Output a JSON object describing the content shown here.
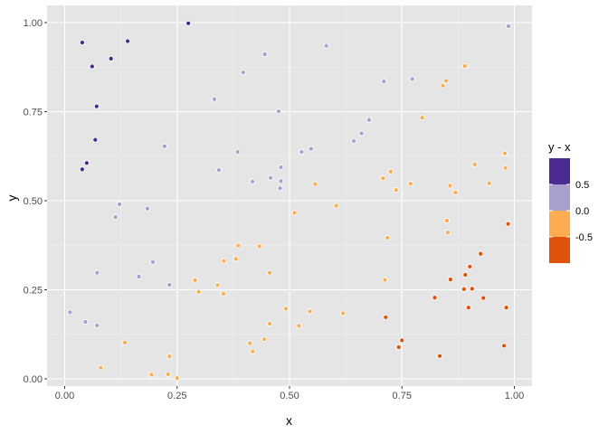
{
  "chart_data": {
    "type": "scatter",
    "xlabel": "x",
    "ylabel": "y",
    "xlim": [
      0.0,
      1.0
    ],
    "ylim": [
      0.0,
      1.0
    ],
    "x_ticks": [
      "0.00",
      "0.25",
      "0.50",
      "0.75",
      "1.00"
    ],
    "y_ticks": [
      "0.00",
      "0.25",
      "0.50",
      "0.75",
      "1.00"
    ],
    "grid": true,
    "background": "#e5e5e5",
    "legend": {
      "title": "y - x",
      "position": "right",
      "bins": [
        {
          "label": "0.5",
          "color": "#4b2a91"
        },
        {
          "label": "",
          "color": "#a99fcd"
        },
        {
          "label": "0.0",
          "color": "#fdac4f"
        },
        {
          "label": "-0.5",
          "color": "#e0520a"
        }
      ],
      "tick_labels": [
        "0.5",
        "0.0",
        "-0.5"
      ]
    },
    "color_rule": "y - x: >= 0.5 dark purple, 0 to 0.5 light purple, -0.5 to 0 light orange, < -0.5 dark orange",
    "points": [
      {
        "x": 0.039,
        "y": 0.944
      },
      {
        "x": 0.061,
        "y": 0.877
      },
      {
        "x": 0.103,
        "y": 0.899
      },
      {
        "x": 0.14,
        "y": 0.948
      },
      {
        "x": 0.071,
        "y": 0.765
      },
      {
        "x": 0.068,
        "y": 0.671
      },
      {
        "x": 0.049,
        "y": 0.606
      },
      {
        "x": 0.039,
        "y": 0.588
      },
      {
        "x": 0.275,
        "y": 0.998
      },
      {
        "x": 0.012,
        "y": 0.187
      },
      {
        "x": 0.046,
        "y": 0.16
      },
      {
        "x": 0.072,
        "y": 0.15
      },
      {
        "x": 0.072,
        "y": 0.298
      },
      {
        "x": 0.113,
        "y": 0.454
      },
      {
        "x": 0.122,
        "y": 0.49
      },
      {
        "x": 0.165,
        "y": 0.287
      },
      {
        "x": 0.184,
        "y": 0.478
      },
      {
        "x": 0.196,
        "y": 0.328
      },
      {
        "x": 0.222,
        "y": 0.653
      },
      {
        "x": 0.233,
        "y": 0.264
      },
      {
        "x": 0.333,
        "y": 0.785
      },
      {
        "x": 0.343,
        "y": 0.586
      },
      {
        "x": 0.385,
        "y": 0.637
      },
      {
        "x": 0.397,
        "y": 0.86
      },
      {
        "x": 0.418,
        "y": 0.554
      },
      {
        "x": 0.445,
        "y": 0.911
      },
      {
        "x": 0.458,
        "y": 0.564
      },
      {
        "x": 0.476,
        "y": 0.751
      },
      {
        "x": 0.481,
        "y": 0.594
      },
      {
        "x": 0.481,
        "y": 0.555
      },
      {
        "x": 0.479,
        "y": 0.535
      },
      {
        "x": 0.527,
        "y": 0.637
      },
      {
        "x": 0.548,
        "y": 0.646
      },
      {
        "x": 0.582,
        "y": 0.935
      },
      {
        "x": 0.643,
        "y": 0.668
      },
      {
        "x": 0.66,
        "y": 0.689
      },
      {
        "x": 0.677,
        "y": 0.727
      },
      {
        "x": 0.71,
        "y": 0.835
      },
      {
        "x": 0.773,
        "y": 0.842
      },
      {
        "x": 0.987,
        "y": 0.99
      },
      {
        "x": 0.08,
        "y": 0.031
      },
      {
        "x": 0.134,
        "y": 0.102
      },
      {
        "x": 0.193,
        "y": 0.012
      },
      {
        "x": 0.23,
        "y": 0.013
      },
      {
        "x": 0.233,
        "y": 0.063
      },
      {
        "x": 0.25,
        "y": 0.002
      },
      {
        "x": 0.29,
        "y": 0.277
      },
      {
        "x": 0.298,
        "y": 0.244
      },
      {
        "x": 0.34,
        "y": 0.263
      },
      {
        "x": 0.353,
        "y": 0.239
      },
      {
        "x": 0.354,
        "y": 0.331
      },
      {
        "x": 0.381,
        "y": 0.337
      },
      {
        "x": 0.386,
        "y": 0.374
      },
      {
        "x": 0.412,
        "y": 0.1
      },
      {
        "x": 0.418,
        "y": 0.077
      },
      {
        "x": 0.433,
        "y": 0.372
      },
      {
        "x": 0.444,
        "y": 0.111
      },
      {
        "x": 0.456,
        "y": 0.155
      },
      {
        "x": 0.456,
        "y": 0.298
      },
      {
        "x": 0.492,
        "y": 0.197
      },
      {
        "x": 0.511,
        "y": 0.466
      },
      {
        "x": 0.521,
        "y": 0.149
      },
      {
        "x": 0.545,
        "y": 0.189
      },
      {
        "x": 0.557,
        "y": 0.547
      },
      {
        "x": 0.604,
        "y": 0.486
      },
      {
        "x": 0.619,
        "y": 0.184
      },
      {
        "x": 0.708,
        "y": 0.563
      },
      {
        "x": 0.712,
        "y": 0.278
      },
      {
        "x": 0.718,
        "y": 0.396
      },
      {
        "x": 0.725,
        "y": 0.582
      },
      {
        "x": 0.737,
        "y": 0.53
      },
      {
        "x": 0.769,
        "y": 0.548
      },
      {
        "x": 0.795,
        "y": 0.733
      },
      {
        "x": 0.841,
        "y": 0.823
      },
      {
        "x": 0.848,
        "y": 0.837
      },
      {
        "x": 0.85,
        "y": 0.444
      },
      {
        "x": 0.852,
        "y": 0.411
      },
      {
        "x": 0.857,
        "y": 0.542
      },
      {
        "x": 0.869,
        "y": 0.523
      },
      {
        "x": 0.89,
        "y": 0.878
      },
      {
        "x": 0.912,
        "y": 0.602
      },
      {
        "x": 0.944,
        "y": 0.549
      },
      {
        "x": 0.979,
        "y": 0.633
      },
      {
        "x": 0.98,
        "y": 0.592
      },
      {
        "x": 0.714,
        "y": 0.173
      },
      {
        "x": 0.743,
        "y": 0.089
      },
      {
        "x": 0.75,
        "y": 0.108
      },
      {
        "x": 0.823,
        "y": 0.228
      },
      {
        "x": 0.834,
        "y": 0.064
      },
      {
        "x": 0.858,
        "y": 0.279
      },
      {
        "x": 0.888,
        "y": 0.252
      },
      {
        "x": 0.891,
        "y": 0.292
      },
      {
        "x": 0.898,
        "y": 0.2
      },
      {
        "x": 0.901,
        "y": 0.315
      },
      {
        "x": 0.906,
        "y": 0.253
      },
      {
        "x": 0.925,
        "y": 0.351
      },
      {
        "x": 0.931,
        "y": 0.227
      },
      {
        "x": 0.977,
        "y": 0.093
      },
      {
        "x": 0.982,
        "y": 0.2
      },
      {
        "x": 0.986,
        "y": 0.435
      }
    ]
  }
}
